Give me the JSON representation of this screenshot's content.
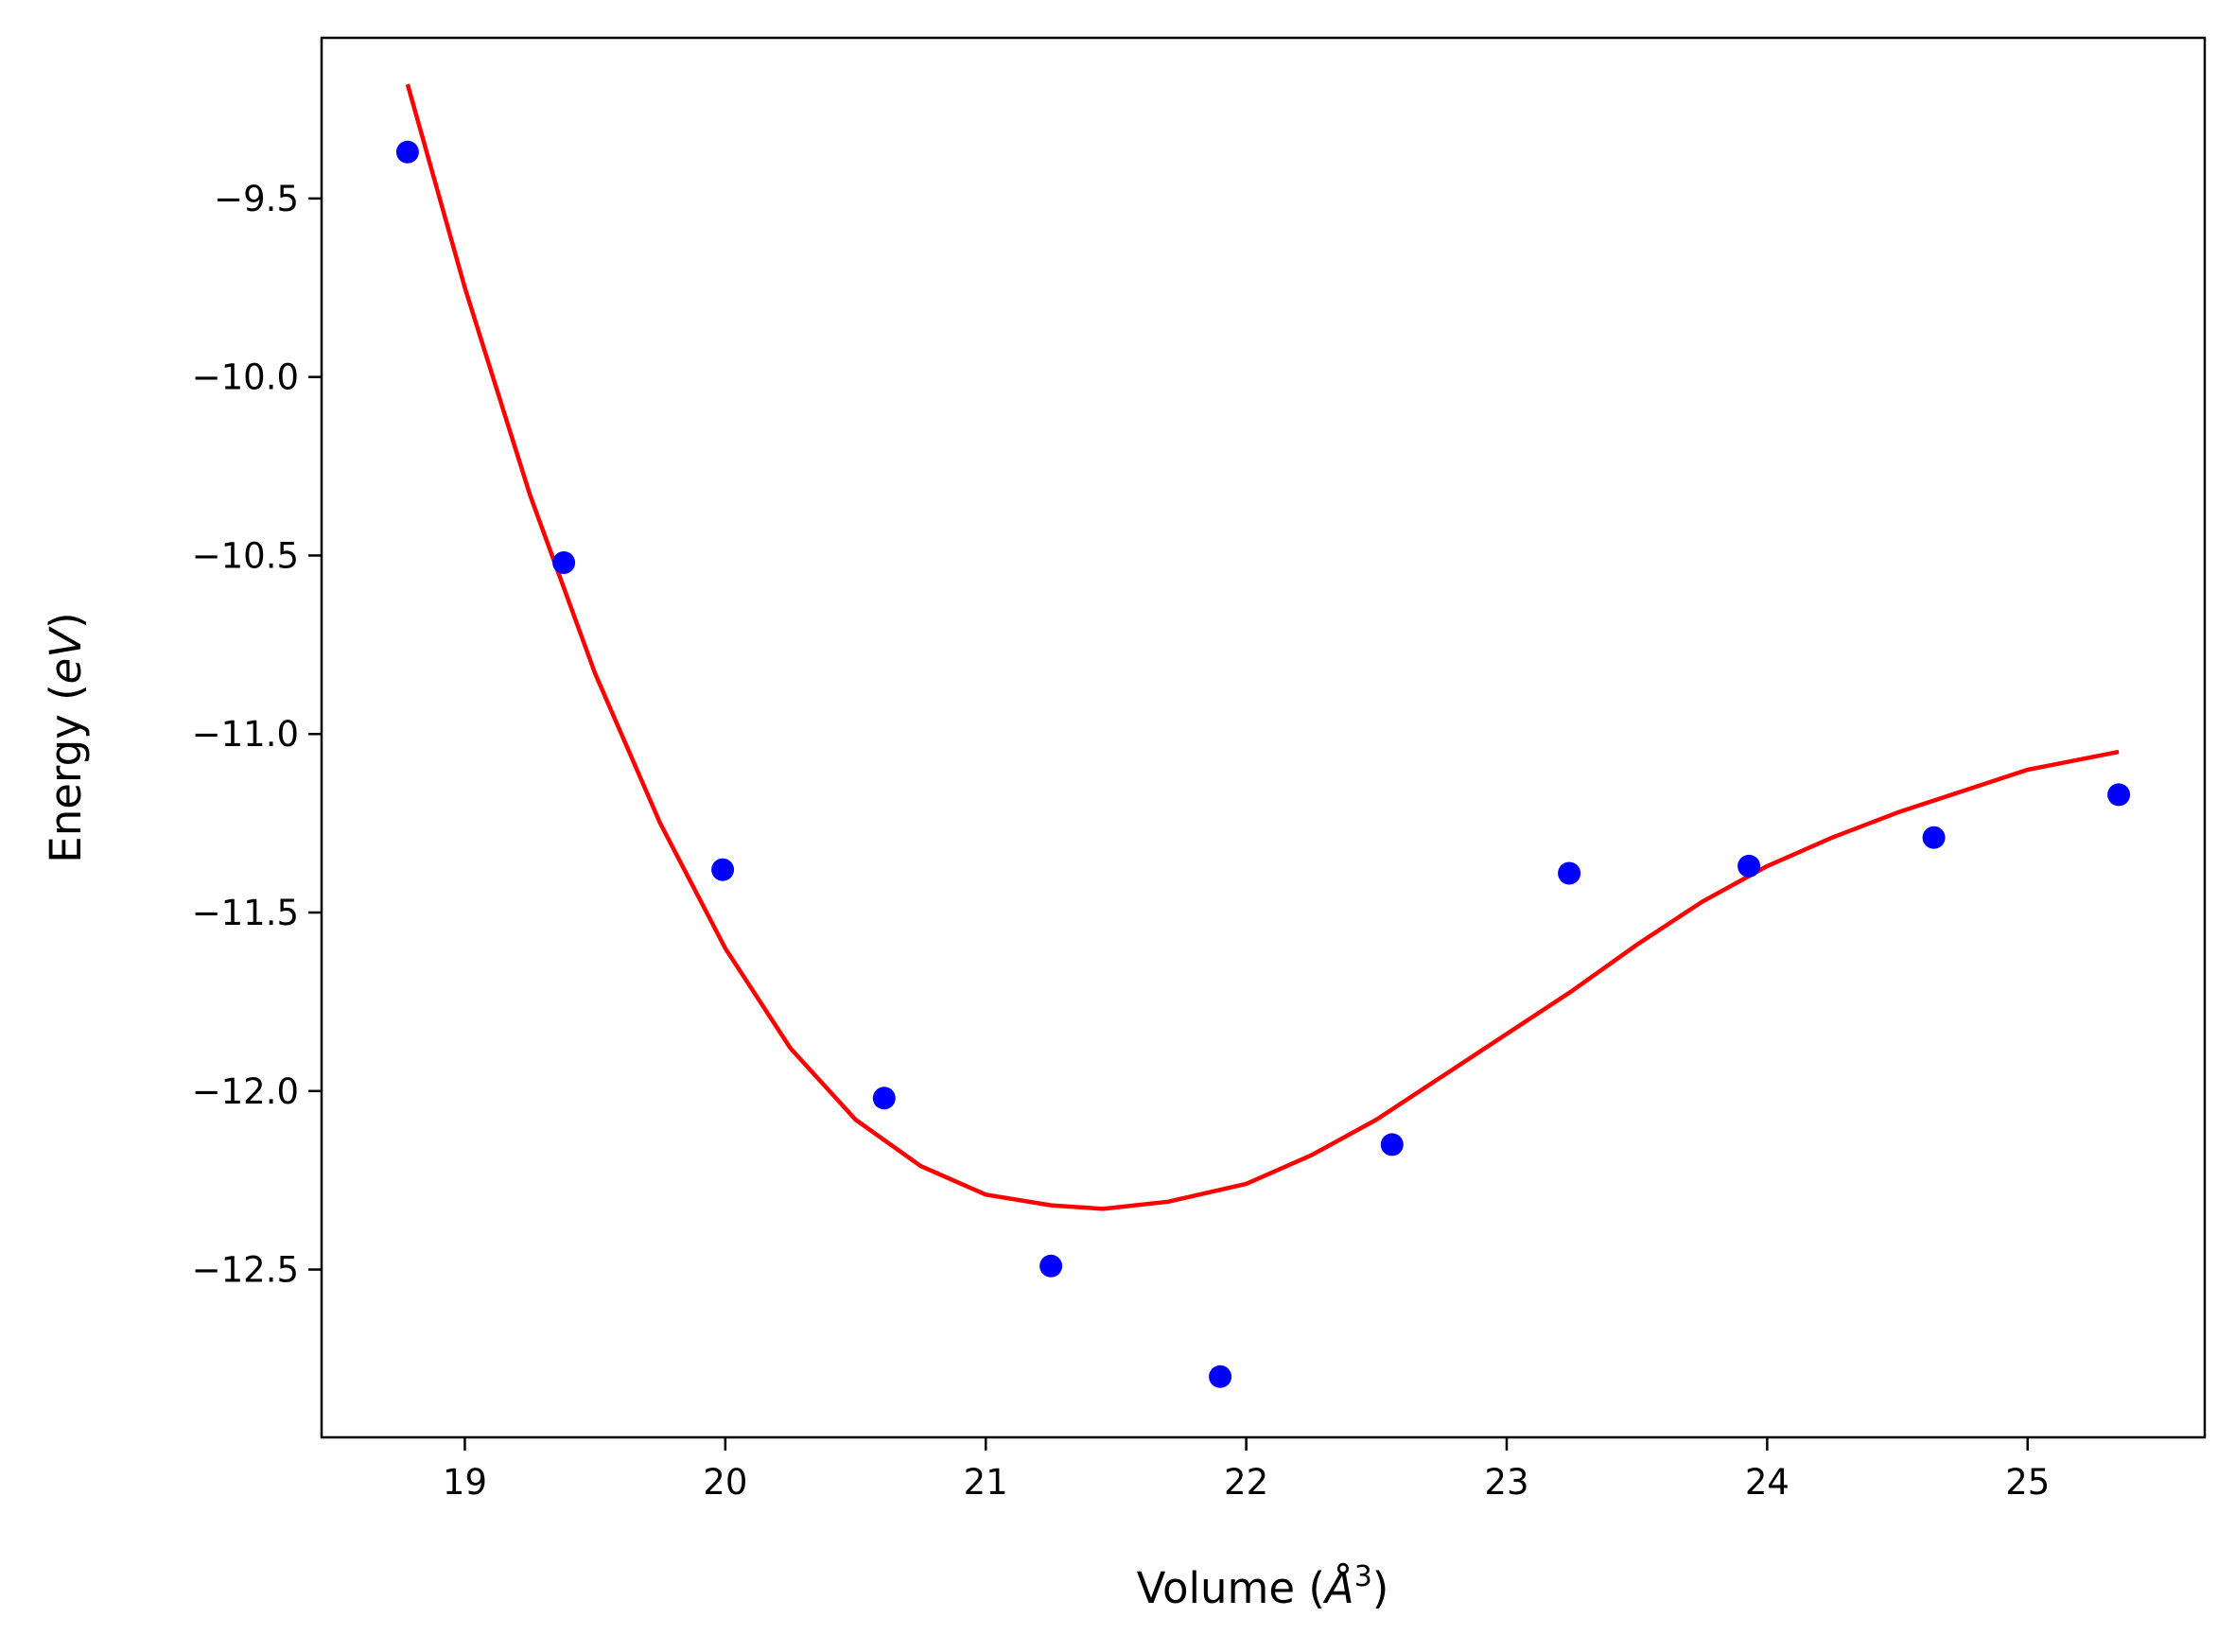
{
  "chart_data": {
    "type": "scatter",
    "title": "",
    "xlabel": {
      "prefix": "Volume (",
      "symbol": "Å",
      "power": "3",
      "suffix": ")"
    },
    "ylabel": {
      "prefix": "Energy (",
      "unit": "eV",
      "suffix": ")"
    },
    "xlim": [
      18.45,
      25.68
    ],
    "ylim": [
      -12.97,
      -9.05
    ],
    "xticks": [
      19,
      20,
      21,
      22,
      23,
      24,
      25
    ],
    "xtick_labels": [
      "19",
      "20",
      "21",
      "22",
      "23",
      "24",
      "25"
    ],
    "yticks": [
      -9.5,
      -10.0,
      -10.5,
      -11.0,
      -11.5,
      -12.0,
      -12.5
    ],
    "ytick_labels": [
      "−9.5",
      "−10.0",
      "−10.5",
      "−11.0",
      "−11.5",
      "−12.0",
      "−12.5"
    ],
    "grid": false,
    "series": [
      {
        "kind": "points",
        "color": "#0000ff",
        "x": [
          18.78,
          19.38,
          19.99,
          20.61,
          21.25,
          21.9,
          22.56,
          23.24,
          23.93,
          24.64,
          25.35
        ],
        "y": [
          -9.37,
          -10.52,
          -11.38,
          -12.02,
          -12.49,
          -12.8,
          -12.15,
          -11.39,
          -11.37,
          -11.29,
          -11.17
        ]
      },
      {
        "kind": "fit",
        "color": "#ff0000",
        "x": [
          18.78,
          19.0,
          19.25,
          19.5,
          19.75,
          20.0,
          20.25,
          20.5,
          20.75,
          21.0,
          21.25,
          21.45,
          21.7,
          22.0,
          22.25,
          22.5,
          22.75,
          23.0,
          23.25,
          23.5,
          23.75,
          24.0,
          24.25,
          24.5,
          24.75,
          25.0,
          25.35
        ],
        "y": [
          -9.18,
          -9.75,
          -10.33,
          -10.83,
          -11.25,
          -11.6,
          -11.88,
          -12.08,
          -12.21,
          -12.29,
          -12.32,
          -12.33,
          -12.31,
          -12.26,
          -12.18,
          -12.08,
          -11.96,
          -11.84,
          -11.72,
          -11.59,
          -11.47,
          -11.37,
          -11.29,
          -11.22,
          -11.16,
          -11.1,
          -11.05
        ]
      }
    ]
  }
}
